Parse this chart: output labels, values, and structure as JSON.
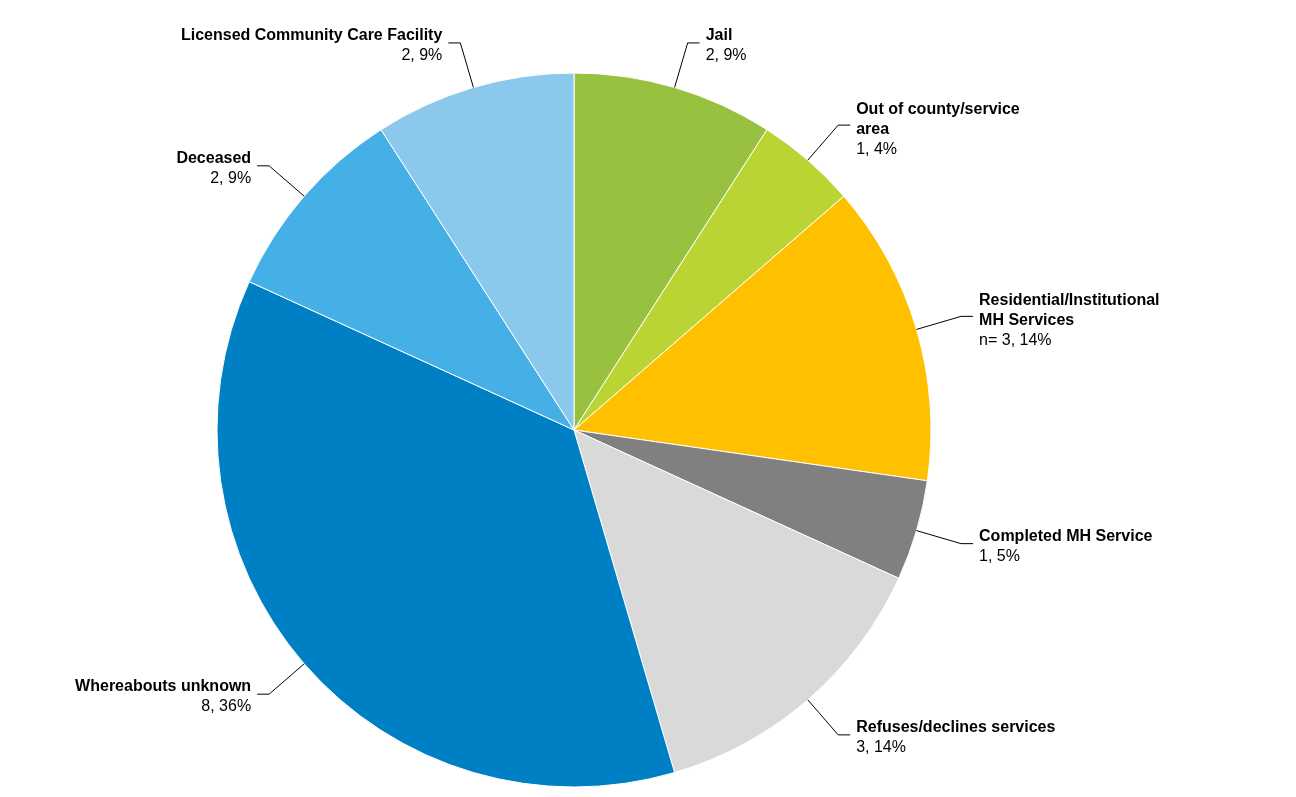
{
  "chart_data": {
    "type": "pie",
    "categories": [
      "Jail",
      "Out of county/service area",
      "Residential/Institutional MH Services",
      "Completed MH Service",
      "Refuses/declines services",
      "Whereabouts unknown",
      "Deceased",
      "Licensed Community Care Facility"
    ],
    "values": [
      2,
      1,
      3,
      1,
      3,
      8,
      2,
      2
    ],
    "value_labels": [
      "2, 9%",
      "1, 4%",
      "n= 3, 14%",
      "1, 5%",
      "3, 14%",
      "8, 36%",
      "2, 9%",
      "2, 9%"
    ],
    "colors": [
      "#98c13f",
      "#b9d433",
      "#ffc000",
      "#808080",
      "#d9d9d9",
      "#0080c4",
      "#45b0e5",
      "#8ac8ec"
    ]
  }
}
